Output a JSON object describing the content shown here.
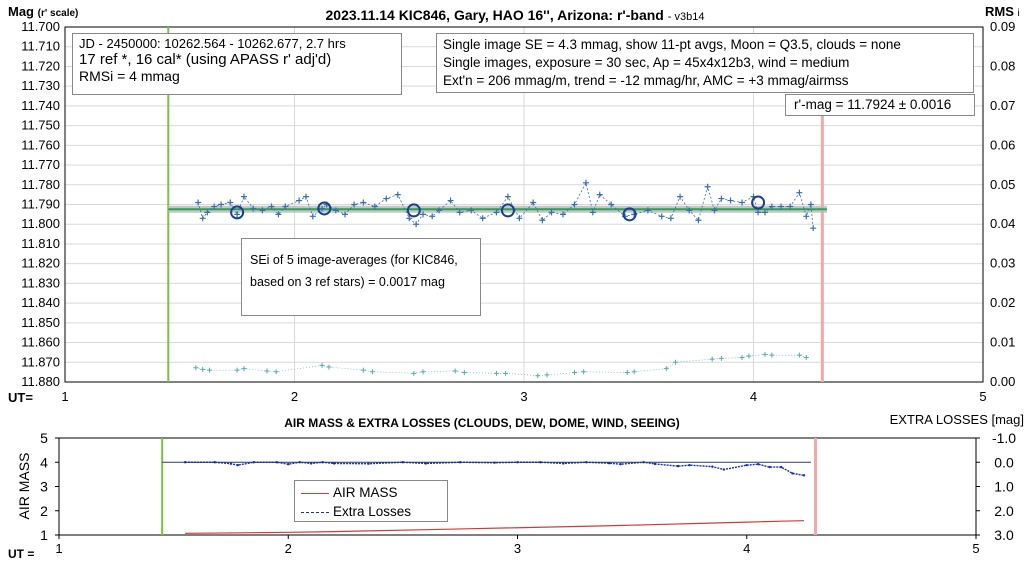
{
  "colors": {
    "primary_series": "#3a6fa8",
    "mean_line": "#2e9e5a",
    "mean_band": "#b8b8b8",
    "rms_series": "#5aa7b0",
    "airmass": "#d03a3a",
    "extra_losses": "#1a2fa0",
    "extra_losses_ref": "#2a3a7a",
    "start_marker": "#7cc242",
    "end_marker": "#f3a8a8",
    "avg_circle": "#1b3f8f",
    "axis": "#000000",
    "grid": "#d9d9d9"
  },
  "chart_data": [
    {
      "type": "scatter",
      "title": "2023.11.14 KIC846, Gary, HAO 16'', Arizona: r'-band",
      "title_version": "- v3b14",
      "ylabel": "Mag",
      "ylabel_unit": "(r' scale)",
      "y2label": "RMS",
      "y2label_suffix": "i",
      "xlabel": "UT=",
      "xlim": [
        1,
        5
      ],
      "ylim": [
        11.88,
        11.7
      ],
      "y_inverted": true,
      "y2lim": [
        0,
        0.09
      ],
      "x_ticks": [
        "1",
        "2",
        "3",
        "4",
        "5"
      ],
      "y_ticks": [
        "11.700",
        "11.710",
        "11.720",
        "11.730",
        "11.740",
        "11.750",
        "11.760",
        "11.770",
        "11.780",
        "11.790",
        "11.800",
        "11.810",
        "11.820",
        "11.830",
        "11.840",
        "11.850",
        "11.860",
        "11.870",
        "11.880"
      ],
      "y2_ticks": [
        "0.09",
        "0.08",
        "0.07",
        "0.06",
        "0.05",
        "0.04",
        "0.03",
        "0.02",
        "0.01",
        "0.00"
      ],
      "grid": true,
      "start_ut": 1.45,
      "end_ut": 4.3,
      "mean_mag": 11.7924,
      "info_left": [
        "JD - 2450000: 10262.564 - 10262.677, 2.7 hrs",
        "17 ref *, 16 cal* (using APASS r' adj'd)",
        "RMSi = 4 mmag"
      ],
      "info_right": [
        "Single image SE = 4.3 mmag, show  11-pt avgs, Moon = Q3.5, clouds = none",
        "Single images, exposure = 30 sec, Ap = 45x4x12b3, wind = medium",
        "Ext'n = 206 mmag/m, trend = -12  mmag/hr, AMC = +3 mmag/airmss"
      ],
      "result_label": "r'-mag = 11.7924 ± 0.0016",
      "annotation": [
        "SEi of 5 image-averages (for KIC846,",
        "based on 3 ref stars) = 0.0017 mag"
      ],
      "series": [
        {
          "name": "single images",
          "x": [
            1.58,
            1.6,
            1.62,
            1.65,
            1.68,
            1.72,
            1.75,
            1.78,
            1.82,
            1.86,
            1.9,
            1.93,
            1.96,
            2.02,
            2.05,
            2.08,
            2.12,
            2.14,
            2.18,
            2.22,
            2.26,
            2.3,
            2.35,
            2.4,
            2.45,
            2.5,
            2.53,
            2.56,
            2.6,
            2.63,
            2.68,
            2.72,
            2.77,
            2.82,
            2.88,
            2.93,
            2.98,
            3.04,
            3.08,
            3.12,
            3.17,
            3.22,
            3.27,
            3.3,
            3.33,
            3.38,
            3.44,
            3.48,
            3.54,
            3.6,
            3.64,
            3.68,
            3.72,
            3.76,
            3.8,
            3.83,
            3.86,
            3.9,
            3.95,
            4.0,
            4.02,
            4.05,
            4.08,
            4.12,
            4.16,
            4.2,
            4.23,
            4.25,
            4.26
          ],
          "y": [
            11.789,
            11.797,
            11.794,
            11.791,
            11.79,
            11.789,
            11.795,
            11.786,
            11.792,
            11.793,
            11.791,
            11.795,
            11.791,
            11.788,
            11.786,
            11.796,
            11.792,
            11.79,
            11.793,
            11.795,
            11.79,
            11.789,
            11.791,
            11.787,
            11.785,
            11.797,
            11.8,
            11.795,
            11.796,
            11.793,
            11.788,
            11.794,
            11.793,
            11.797,
            11.794,
            11.786,
            11.797,
            11.789,
            11.798,
            11.794,
            11.795,
            11.79,
            11.779,
            11.794,
            11.785,
            11.79,
            11.796,
            11.795,
            11.793,
            11.796,
            11.797,
            11.786,
            11.793,
            11.798,
            11.781,
            11.793,
            11.787,
            11.788,
            11.789,
            11.786,
            11.794,
            11.794,
            11.791,
            11.791,
            11.791,
            11.784,
            11.796,
            11.79,
            11.802
          ]
        },
        {
          "name": "11-pt averages",
          "x": [
            1.75,
            2.13,
            2.52,
            2.93,
            3.46,
            4.02
          ],
          "y": [
            11.794,
            11.792,
            11.793,
            11.793,
            11.795,
            11.789
          ]
        },
        {
          "name": "RMSi",
          "x": [
            1.57,
            1.6,
            1.63,
            1.75,
            1.78,
            1.88,
            1.92,
            2.12,
            2.15,
            2.3,
            2.34,
            2.52,
            2.56,
            2.7,
            2.74,
            2.88,
            2.92,
            3.06,
            3.1,
            3.22,
            3.26,
            3.45,
            3.48,
            3.62,
            3.66,
            3.82,
            3.86,
            3.95,
            3.98,
            4.05,
            4.08,
            4.2,
            4.23
          ],
          "y": [
            0.0036,
            0.0032,
            0.003,
            0.003,
            0.0034,
            0.0028,
            0.0026,
            0.0042,
            0.0038,
            0.003,
            0.0026,
            0.0022,
            0.0026,
            0.0028,
            0.0024,
            0.0022,
            0.0022,
            0.0016,
            0.0018,
            0.0024,
            0.0026,
            0.0024,
            0.0026,
            0.0034,
            0.005,
            0.0058,
            0.006,
            0.0062,
            0.0066,
            0.007,
            0.0068,
            0.0068,
            0.0062
          ]
        }
      ]
    },
    {
      "type": "line",
      "title": "AIR MASS & EXTRA LOSSES (CLOUDS, DEW, DOME, WIND, SEEING)",
      "ylabel": "AIR MASS",
      "y2label": "EXTRA LOSSES [mag]",
      "xlabel": "UT =",
      "xlim": [
        1,
        5
      ],
      "ylim": [
        1,
        5
      ],
      "y2lim": [
        3.0,
        -1.0
      ],
      "x_ticks": [
        "1",
        "2",
        "3",
        "4",
        "5"
      ],
      "y_ticks": [
        "1",
        "2",
        "3",
        "4",
        "5"
      ],
      "y2_ticks": [
        "-1.0",
        "0.0",
        "1.0",
        "2.0",
        "3.0"
      ],
      "start_ut": 1.45,
      "end_ut": 4.3,
      "legend_position": "middle-left",
      "series": [
        {
          "name": "AIR MASS",
          "x": [
            1.55,
            1.8,
            2.0,
            2.2,
            2.4,
            2.6,
            2.8,
            3.0,
            3.2,
            3.4,
            3.6,
            3.8,
            4.0,
            4.15,
            4.25
          ],
          "y": [
            1.07,
            1.09,
            1.11,
            1.14,
            1.18,
            1.22,
            1.26,
            1.3,
            1.34,
            1.38,
            1.43,
            1.48,
            1.53,
            1.57,
            1.59
          ]
        },
        {
          "name": "Extra Losses",
          "x": [
            1.55,
            1.68,
            1.75,
            1.78,
            1.85,
            1.95,
            2.0,
            2.05,
            2.1,
            2.15,
            2.2,
            2.35,
            2.5,
            2.6,
            2.75,
            2.9,
            3.0,
            3.1,
            3.2,
            3.3,
            3.4,
            3.45,
            3.55,
            3.6,
            3.7,
            3.75,
            3.85,
            3.9,
            4.0,
            4.05,
            4.1,
            4.15,
            4.2,
            4.25
          ],
          "y": [
            0.0,
            0.0,
            0.06,
            0.12,
            0.0,
            0.0,
            0.08,
            0.0,
            0.05,
            0.0,
            0.05,
            0.06,
            0.0,
            0.05,
            0.0,
            0.02,
            0.0,
            0.0,
            0.05,
            0.0,
            0.04,
            0.08,
            0.0,
            0.07,
            0.16,
            0.12,
            0.18,
            0.3,
            0.12,
            0.08,
            0.2,
            0.2,
            0.46,
            0.54
          ]
        }
      ]
    }
  ]
}
